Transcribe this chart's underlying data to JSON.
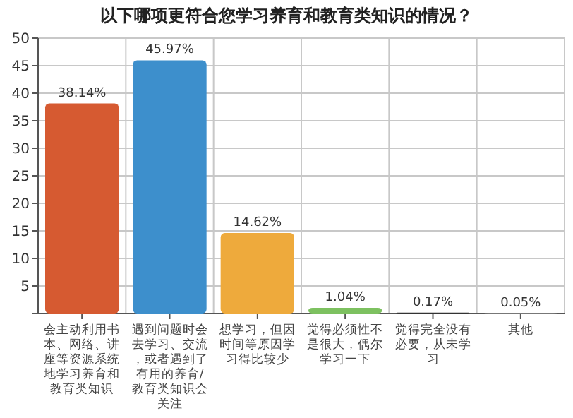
{
  "chart_data": {
    "type": "bar",
    "title": "以下哪项更符合您学习养育和教育类知识的情况？",
    "categories": [
      "会主动利用书本、网络、讲座等资源系统地学习养育和教育类知识",
      "遇到问题时会去学习、交流，或者遇到了有用的养育/教育类知识会关注",
      "想学习，但因时间等原因学习得比较少",
      "觉得必须性不是很大，偶尔学习一下",
      "觉得完全没有必要，从未学习",
      "其他"
    ],
    "values": [
      38.14,
      45.97,
      14.62,
      1.04,
      0.17,
      0.05
    ],
    "colors": [
      "#d65a31",
      "#3d8fcc",
      "#eeaa3c",
      "#7dc160",
      "#333333",
      "#999999"
    ],
    "value_labels": [
      "38.14%",
      "45.97%",
      "14.62%",
      "1.04%",
      "0.17%",
      "0.05%"
    ],
    "ylim": [
      0,
      50
    ],
    "yticks": [
      {
        "value": 0,
        "label": null
      },
      5,
      10,
      15,
      20,
      25,
      30,
      35,
      40,
      45,
      50
    ],
    "grid": true
  }
}
